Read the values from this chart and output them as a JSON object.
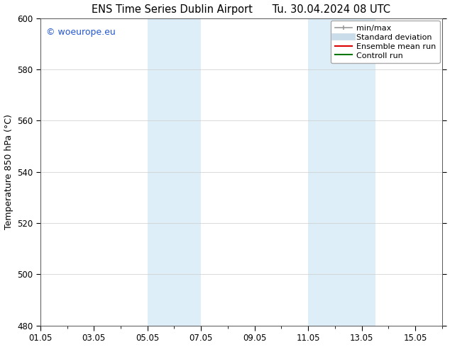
{
  "title_left": "ENS Time Series Dublin Airport",
  "title_right": "Tu. 30.04.2024 08 UTC",
  "ylabel": "Temperature 850 hPa (°C)",
  "ylim": [
    480,
    600
  ],
  "yticks": [
    480,
    500,
    520,
    540,
    560,
    580,
    600
  ],
  "xlim_days": [
    0,
    15
  ],
  "xtick_positions_days": [
    0,
    2,
    4,
    6,
    8,
    10,
    12,
    14
  ],
  "xtick_labels": [
    "01.05",
    "03.05",
    "05.05",
    "07.05",
    "09.05",
    "11.05",
    "13.05",
    "15.05"
  ],
  "shaded_regions": [
    {
      "start_day": 4.0,
      "end_day": 6.0
    },
    {
      "start_day": 10.0,
      "end_day": 12.5
    }
  ],
  "shaded_color": "#ddeef8",
  "bg_color": "#ffffff",
  "grid_color": "#cccccc",
  "watermark_text": "© woeurope.eu",
  "watermark_color": "#2255cc",
  "legend_items": [
    {
      "label": "min/max",
      "color": "#999999",
      "lw": 1.2
    },
    {
      "label": "Standard deviation",
      "color": "#c8dcea",
      "lw": 7
    },
    {
      "label": "Ensemble mean run",
      "color": "#dd0000",
      "lw": 1.5
    },
    {
      "label": "Controll run",
      "color": "#007700",
      "lw": 1.5
    }
  ],
  "title_fontsize": 10.5,
  "ylabel_fontsize": 9,
  "tick_fontsize": 8.5,
  "watermark_fontsize": 9,
  "legend_fontsize": 8
}
